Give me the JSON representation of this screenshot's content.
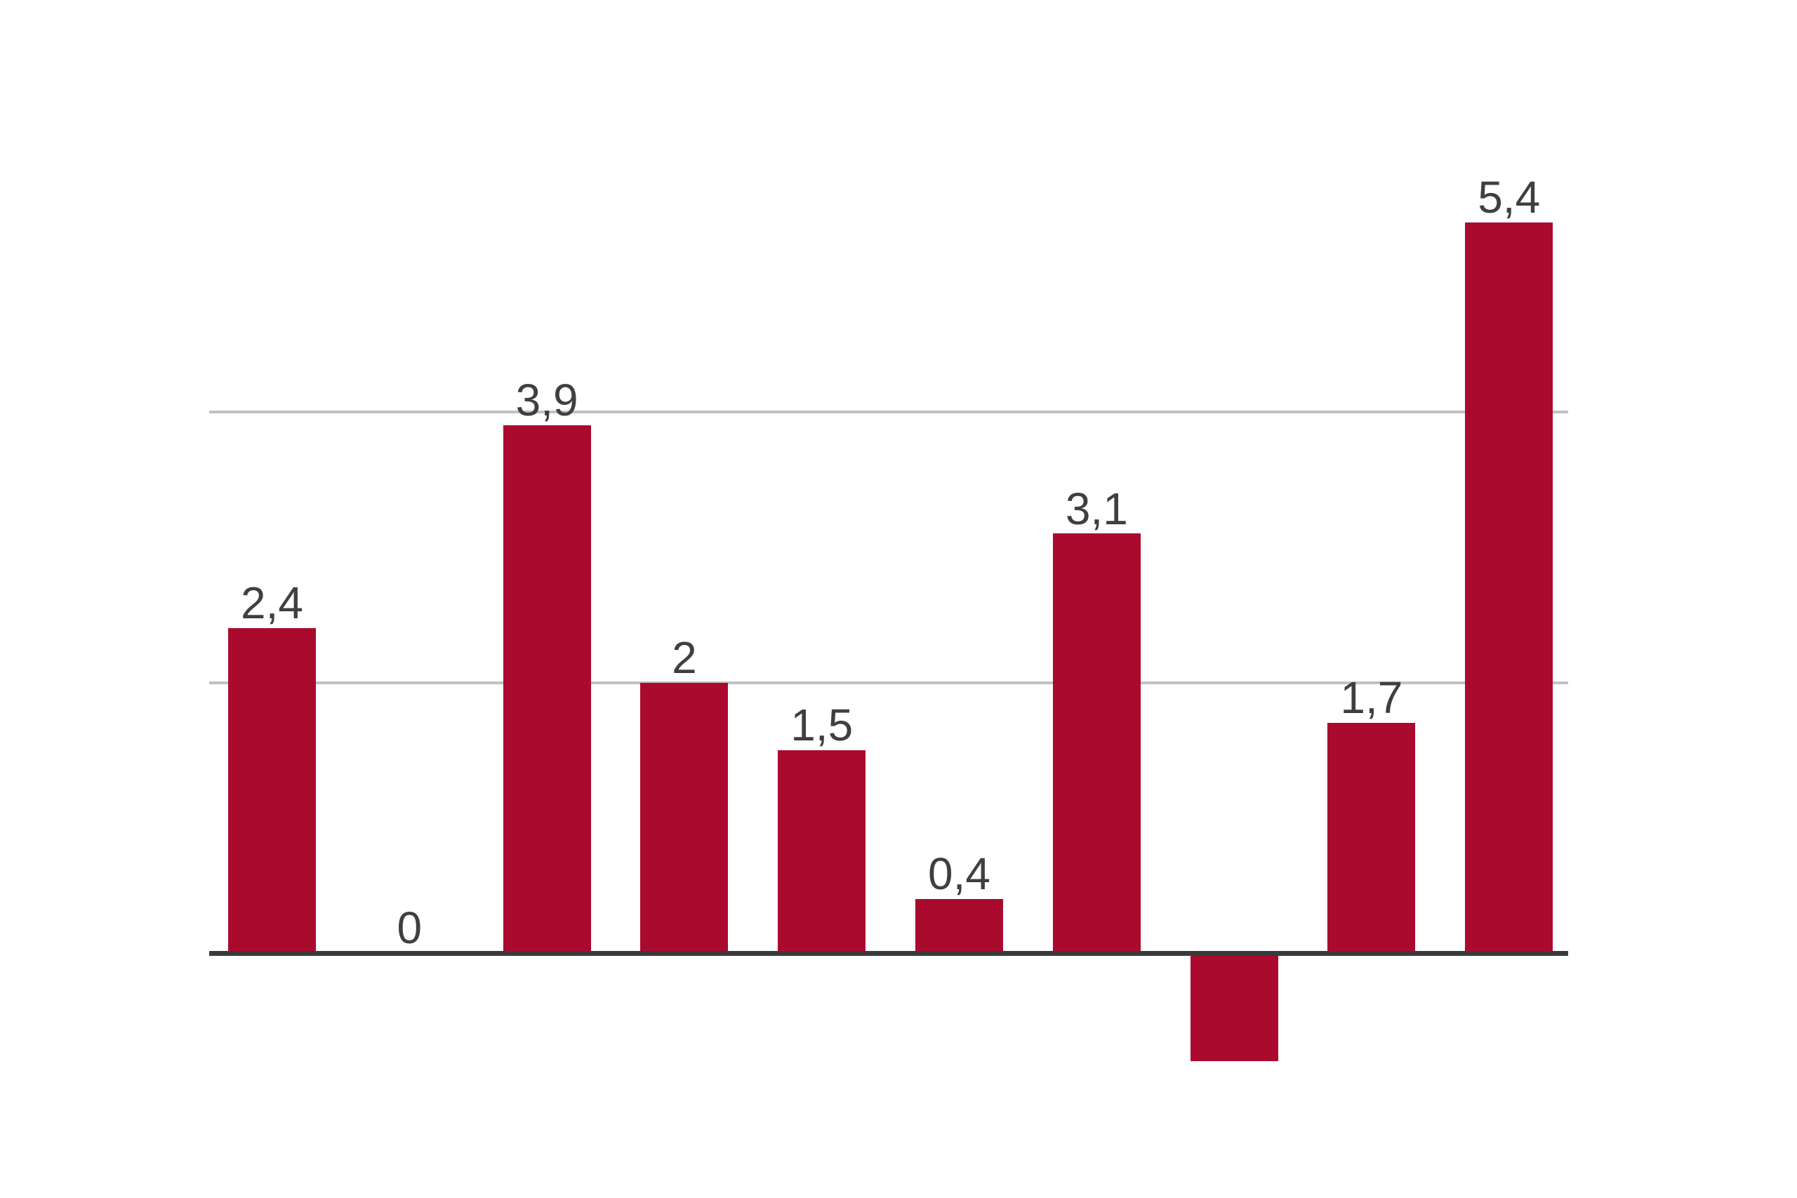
{
  "chart_data": {
    "type": "bar",
    "title": "",
    "xlabel": "",
    "ylabel": "",
    "values": [
      2.4,
      0,
      3.9,
      2,
      1.5,
      0.4,
      3.1,
      -0.8,
      1.7,
      5.4
    ],
    "data_labels": [
      "2,4",
      "0",
      "3,9",
      "2",
      "1,5",
      "0,4",
      "3,1",
      "",
      "1,7",
      "5,4"
    ],
    "decimal_separator": ",",
    "ylim": [
      -1,
      6
    ],
    "gridlines_y": [
      2,
      4
    ],
    "baseline_value": 0,
    "grid": "horizontal-only",
    "legend": "none",
    "axis_tick_labels": "none",
    "category_labels": "none",
    "colors": {
      "bar": "#AB0A2F",
      "gridline": "#C1C1C1",
      "axis_line": "#3A3A3A",
      "data_label_text": "#3F3F3F",
      "background": "#FFFFFF"
    }
  }
}
